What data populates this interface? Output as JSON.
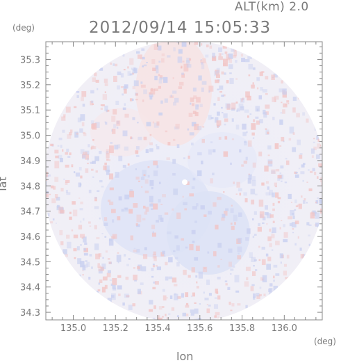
{
  "header": {
    "altitude_label": "ALT(km) 2.0",
    "timestamp": "2012/09/14 15:05:33"
  },
  "axes": {
    "y_unit": "(deg)",
    "x_unit": "(deg)",
    "y_label": "lat",
    "x_label": "lon",
    "x_ticks": [
      "135.0",
      "135.2",
      "135.4",
      "135.6",
      "135.8",
      "136.0"
    ],
    "y_ticks": [
      "35.3",
      "35.2",
      "35.1",
      "35.0",
      "34.9",
      "34.8",
      "34.7",
      "34.6",
      "34.5",
      "34.4",
      "34.3"
    ],
    "x_range": [
      134.87,
      136.18
    ],
    "y_range": [
      34.27,
      35.37
    ]
  },
  "colors": {
    "positive": "#f6d2d2",
    "negative": "#d4daf4",
    "neutral": "#eef0fa",
    "axis": "#888888"
  }
}
